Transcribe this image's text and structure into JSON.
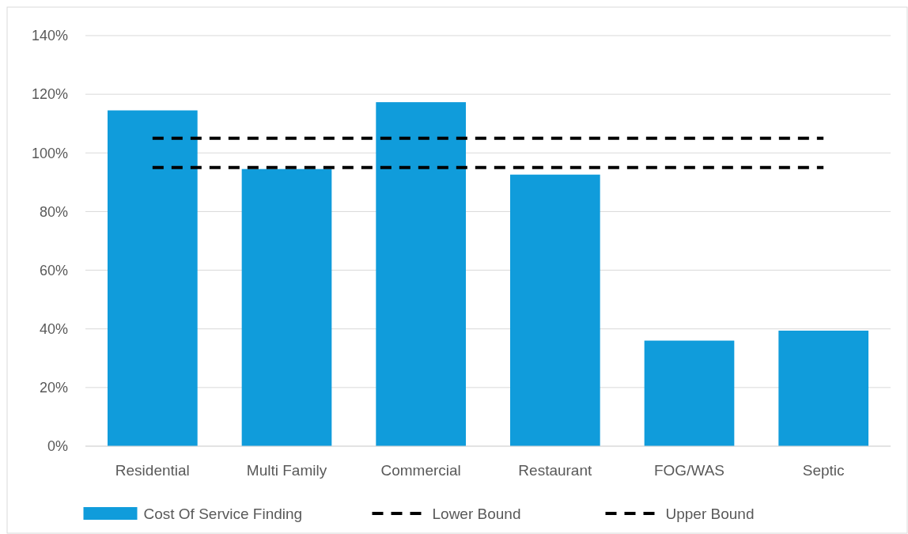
{
  "chart_data": {
    "type": "bar",
    "categories": [
      "Residential",
      "Multi Family",
      "Commercial",
      "Restaurant",
      "FOG/WAS",
      "Septic"
    ],
    "series": [
      {
        "name": "Cost Of Service Finding",
        "color": "#109cdb",
        "values": [
          114.5,
          94.5,
          117.3,
          92.6,
          36,
          39.4
        ]
      },
      {
        "name": "Lower Bound",
        "type": "line",
        "color": "#000000",
        "line_style": "dashed",
        "values": [
          95,
          95,
          95,
          95,
          95,
          95
        ]
      },
      {
        "name": "Upper Bound",
        "type": "line",
        "color": "#000000",
        "line_style": "dashed",
        "values": [
          105,
          105,
          105,
          105,
          105,
          105
        ]
      }
    ],
    "ylim": [
      0,
      140
    ],
    "yticks": [
      {
        "value": 0,
        "label": "0%"
      },
      {
        "value": 20,
        "label": "20%"
      },
      {
        "value": 40,
        "label": "40%"
      },
      {
        "value": 60,
        "label": "60%"
      },
      {
        "value": 80,
        "label": "80%"
      },
      {
        "value": 100,
        "label": "100%"
      },
      {
        "value": 120,
        "label": "120%"
      },
      {
        "value": 140,
        "label": "140%"
      }
    ],
    "grid": "y",
    "legend": "bottom"
  }
}
